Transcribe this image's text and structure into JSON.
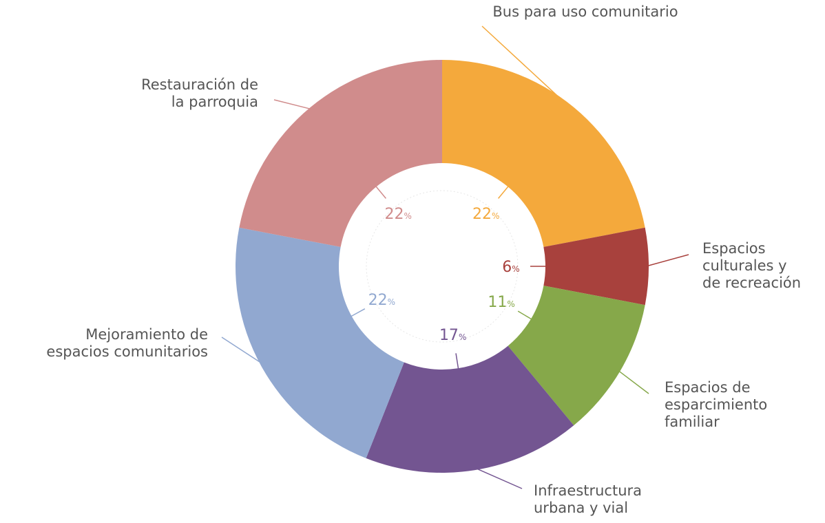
{
  "chart_data": {
    "type": "donut",
    "categories": [
      "Bus para uso comunitario",
      "Espacios culturales y de recreación",
      "Espacios de esparcimiento familiar",
      "Infraestructura urbana y vial",
      "Mejoramiento de espacios comunitarios",
      "Restauración de la parroquia"
    ],
    "values": [
      22,
      6,
      11,
      17,
      22,
      22
    ],
    "value_labels": [
      "22%",
      "6%",
      "11%",
      "17%",
      "22%",
      "22%"
    ],
    "colors": [
      "#f4a93c",
      "#a8413d",
      "#86a84a",
      "#735591",
      "#91a8d0",
      "#d08c8c"
    ]
  }
}
